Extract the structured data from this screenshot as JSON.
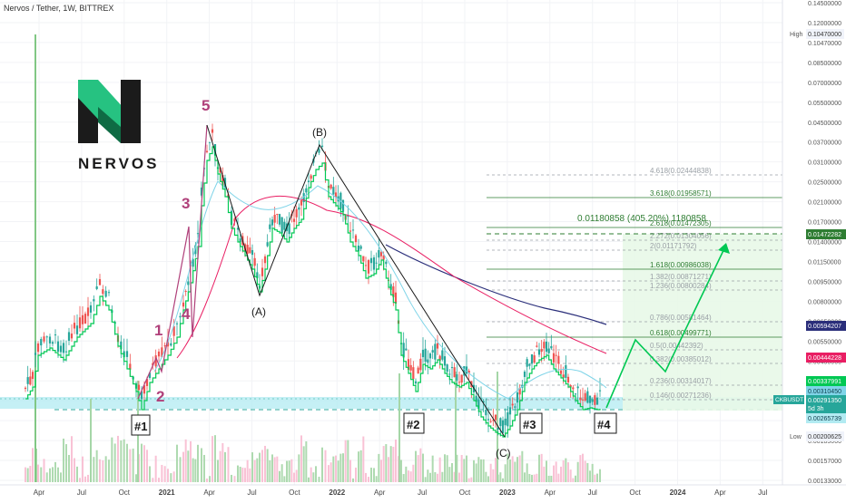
{
  "header": {
    "title": "Nervos / Tether, 1W, BITTREX"
  },
  "logo": {
    "wordmark": "NERVOS"
  },
  "price_axis": {
    "ticks": [
      "0.14500000",
      "0.12000000",
      "0.10470000",
      "0.08500000",
      "0.07000000",
      "0.05500000",
      "0.04500000",
      "0.03700000",
      "0.03100000",
      "0.02500000",
      "0.02100000",
      "0.01700000",
      "0.01400000",
      "0.01150000",
      "0.00950000",
      "0.00800000",
      "0.00650000",
      "0.00550000",
      "0.00450000",
      "0.00370000",
      "0.00300000",
      "0.00220000",
      "0.00185000",
      "0.00157000",
      "0.00133000"
    ],
    "high_label": "High",
    "high_value": "0.10470000",
    "low_label": "Low",
    "low_value": "0.00200625"
  },
  "right_badges": {
    "target": "0.01472282",
    "ma_blue": "0.00594207",
    "ma_pink": "0.00444228",
    "ma_a": "0.00337991",
    "ma_b": "0.00310450",
    "symbol": "CKBUSDT",
    "last_price": "0.00291350",
    "countdown": "5d 3h",
    "support": "0.00265739"
  },
  "time_axis": {
    "labels": [
      "Apr",
      "Jul",
      "Oct",
      "2021",
      "Apr",
      "Jul",
      "Oct",
      "2022",
      "Apr",
      "Jul",
      "Oct",
      "2023",
      "Apr",
      "Jul",
      "Oct",
      "2024",
      "Apr",
      "Jul"
    ]
  },
  "fib_levels": [
    {
      "text": "4.618(0.02444838)",
      "color": "#9aa0a6"
    },
    {
      "text": "3.618(0.01958571)",
      "color": "#2e7d32"
    },
    {
      "text": "2.618(0.01472305)",
      "color": "#2e7d32"
    },
    {
      "text": "2.272(0.01304056)",
      "color": "#9aa0a6"
    },
    {
      "text": "2(0.01171792)",
      "color": "#9aa0a6"
    },
    {
      "text": "1.618(0.00986038)",
      "color": "#2e7d32"
    },
    {
      "text": "1.382(0.00871271)",
      "color": "#9aa0a6"
    },
    {
      "text": "1.236(0.00800284)",
      "color": "#9aa0a6"
    },
    {
      "text": "0.786(0.00581464)",
      "color": "#9aa0a6"
    },
    {
      "text": "0.618(0.00499771)",
      "color": "#2e7d32"
    },
    {
      "text": "0.5(0.00442392)",
      "color": "#9aa0a6"
    },
    {
      "text": "0.382(0.00385012)",
      "color": "#9aa0a6"
    },
    {
      "text": "0.236(0.00314017)",
      "color": "#9aa0a6"
    },
    {
      "text": "0.146(0.00271236)",
      "color": "#9aa0a6"
    }
  ],
  "measure": {
    "text": "0.01180858 (405.20%) 1180858"
  },
  "waves": {
    "impulse": [
      "1",
      "2",
      "3",
      "4",
      "5"
    ],
    "corrective": [
      "(A)",
      "(B)",
      "(C)"
    ],
    "markers": [
      "#1",
      "#2",
      "#3",
      "#4"
    ]
  },
  "colors": {
    "up": "#26a69a",
    "down": "#ef5350",
    "green_line": "#00c853",
    "ma_blue": "#2a2e7a",
    "ma_pink": "#e91e63",
    "support_zone": "#b2ebf2",
    "wave_color": "#b0407a",
    "target_line": "#2e7d32"
  },
  "chart_data": {
    "type": "candlestick",
    "symbol": "CKBUSDT",
    "timeframe": "1W",
    "exchange": "BITTREX",
    "y_scale": "log",
    "ylim": [
      0.00133,
      0.145
    ],
    "approx_weekly_closes": [
      {
        "date": "2020-03",
        "close": 0.0029
      },
      {
        "date": "2020-07",
        "close": 0.006
      },
      {
        "date": "2020-09",
        "close": 0.004
      },
      {
        "date": "2020-11",
        "close": 0.0026
      },
      {
        "date": "2021-01",
        "close": 0.009
      },
      {
        "date": "2021-03",
        "close": 0.028
      },
      {
        "date": "2021-04",
        "close": 0.042
      },
      {
        "date": "2021-06",
        "close": 0.0115
      },
      {
        "date": "2021-07",
        "close": 0.0085
      },
      {
        "date": "2021-09",
        "close": 0.022
      },
      {
        "date": "2021-11",
        "close": 0.034
      },
      {
        "date": "2022-01",
        "close": 0.02
      },
      {
        "date": "2022-04",
        "close": 0.012
      },
      {
        "date": "2022-06",
        "close": 0.0045
      },
      {
        "date": "2022-09",
        "close": 0.004
      },
      {
        "date": "2022-12",
        "close": 0.0023
      },
      {
        "date": "2023-02",
        "close": 0.0045
      },
      {
        "date": "2023-04",
        "close": 0.004
      },
      {
        "date": "2023-06",
        "close": 0.0029
      },
      {
        "date": "2023-07",
        "close": 0.0029
      }
    ],
    "target": 0.01472282,
    "support": 0.00265739
  }
}
